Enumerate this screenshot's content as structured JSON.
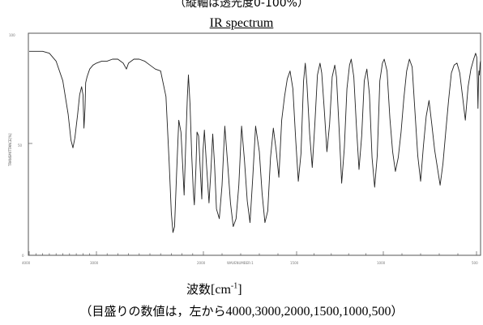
{
  "header": {
    "note_top": "（縦軸は透光度0-100%）",
    "title": "IR spectrum"
  },
  "axes": {
    "x_tick_labels": [
      "4000",
      "3000",
      "2000",
      "1500",
      "1000",
      "500"
    ],
    "y_tick_labels": [
      "100",
      "50",
      "0"
    ],
    "y_axis_label": "TRANSMITTANCE[%]",
    "x_axis_label": "WAVENUMBER-1"
  },
  "caption": {
    "xlabel_text": "波数",
    "xlabel_unit_base": "[cm",
    "xlabel_unit_exp": "-1",
    "xlabel_unit_close": "]",
    "note_open": "（目盛りの数値は，左から",
    "note_values": "4000,3000,2000,1500,1000,500",
    "note_close": "）"
  },
  "chart_data": {
    "type": "line",
    "title": "IR spectrum",
    "xlabel": "波数[cm-1]",
    "ylabel": "TRANSMITTANCE[%]",
    "xlim": [
      4000,
      400
    ],
    "ylim": [
      0,
      100
    ],
    "x_ticks": [
      4000,
      3000,
      2000,
      1500,
      1000,
      500
    ],
    "x_tick_labels": [
      "4000",
      "3000",
      "2000",
      "1500",
      "1000",
      "500"
    ],
    "y_ticks": [
      100,
      50,
      0
    ],
    "y_tick_labels": [
      "100",
      "50",
      "0"
    ],
    "grid": false,
    "series": [
      {
        "color": "#222222",
        "points": [
          [
            4000,
            97
          ],
          [
            3900,
            97
          ],
          [
            3800,
            97
          ],
          [
            3700,
            96
          ],
          [
            3600,
            92
          ],
          [
            3500,
            82
          ],
          [
            3420,
            65
          ],
          [
            3380,
            52
          ],
          [
            3350,
            48
          ],
          [
            3320,
            53
          ],
          [
            3280,
            65
          ],
          [
            3250,
            75
          ],
          [
            3220,
            79
          ],
          [
            3200,
            75
          ],
          [
            3185,
            58
          ],
          [
            3170,
            68
          ],
          [
            3160,
            81
          ],
          [
            3140,
            84
          ],
          [
            3100,
            88
          ],
          [
            3050,
            90
          ],
          [
            3000,
            91
          ],
          [
            2950,
            92
          ],
          [
            2900,
            92
          ],
          [
            2850,
            93
          ],
          [
            2800,
            93
          ],
          [
            2750,
            91
          ],
          [
            2720,
            88
          ],
          [
            2700,
            91
          ],
          [
            2650,
            93
          ],
          [
            2600,
            93
          ],
          [
            2550,
            92
          ],
          [
            2500,
            90
          ],
          [
            2450,
            88
          ],
          [
            2400,
            87
          ],
          [
            2350,
            74
          ],
          [
            2320,
            40
          ],
          [
            2300,
            15
          ],
          [
            2285,
            5
          ],
          [
            2270,
            8
          ],
          [
            2250,
            36
          ],
          [
            2230,
            62
          ],
          [
            2210,
            56
          ],
          [
            2195,
            40
          ],
          [
            2180,
            24
          ],
          [
            2165,
            50
          ],
          [
            2150,
            74
          ],
          [
            2140,
            85
          ],
          [
            2125,
            70
          ],
          [
            2110,
            45
          ],
          [
            2095,
            26
          ],
          [
            2085,
            19
          ],
          [
            2070,
            38
          ],
          [
            2060,
            56
          ],
          [
            2045,
            54
          ],
          [
            2030,
            38
          ],
          [
            2015,
            22
          ],
          [
            2005,
            45
          ],
          [
            1995,
            57
          ],
          [
            1985,
            42
          ],
          [
            1970,
            20
          ],
          [
            1960,
            36
          ],
          [
            1950,
            55
          ],
          [
            1940,
            39
          ],
          [
            1930,
            17
          ],
          [
            1915,
            12
          ],
          [
            1900,
            29
          ],
          [
            1885,
            59
          ],
          [
            1870,
            40
          ],
          [
            1855,
            20
          ],
          [
            1840,
            8
          ],
          [
            1825,
            12
          ],
          [
            1810,
            29
          ],
          [
            1795,
            59
          ],
          [
            1780,
            42
          ],
          [
            1765,
            21
          ],
          [
            1750,
            10
          ],
          [
            1735,
            33
          ],
          [
            1720,
            59
          ],
          [
            1700,
            46
          ],
          [
            1685,
            25
          ],
          [
            1670,
            10
          ],
          [
            1655,
            16
          ],
          [
            1640,
            43
          ],
          [
            1625,
            58
          ],
          [
            1610,
            47
          ],
          [
            1595,
            33
          ],
          [
            1580,
            62
          ],
          [
            1565,
            74
          ],
          [
            1550,
            83
          ],
          [
            1535,
            87
          ],
          [
            1520,
            78
          ],
          [
            1505,
            52
          ],
          [
            1490,
            31
          ],
          [
            1475,
            45
          ],
          [
            1460,
            82
          ],
          [
            1450,
            91
          ],
          [
            1440,
            80
          ],
          [
            1425,
            55
          ],
          [
            1410,
            38
          ],
          [
            1395,
            60
          ],
          [
            1380,
            85
          ],
          [
            1365,
            91
          ],
          [
            1355,
            86
          ],
          [
            1340,
            67
          ],
          [
            1325,
            46
          ],
          [
            1310,
            60
          ],
          [
            1295,
            84
          ],
          [
            1280,
            90
          ],
          [
            1270,
            84
          ],
          [
            1255,
            58
          ],
          [
            1240,
            30
          ],
          [
            1225,
            48
          ],
          [
            1210,
            78
          ],
          [
            1195,
            90
          ],
          [
            1185,
            93
          ],
          [
            1170,
            84
          ],
          [
            1155,
            59
          ],
          [
            1140,
            37
          ],
          [
            1125,
            54
          ],
          [
            1110,
            82
          ],
          [
            1095,
            88
          ],
          [
            1080,
            75
          ],
          [
            1065,
            43
          ],
          [
            1050,
            28
          ],
          [
            1035,
            44
          ],
          [
            1020,
            82
          ],
          [
            1005,
            91
          ],
          [
            995,
            93
          ],
          [
            980,
            87
          ],
          [
            965,
            63
          ],
          [
            950,
            46
          ],
          [
            935,
            36
          ],
          [
            920,
            43
          ],
          [
            905,
            56
          ],
          [
            890,
            73
          ],
          [
            875,
            87
          ],
          [
            860,
            93
          ],
          [
            845,
            89
          ],
          [
            830,
            66
          ],
          [
            815,
            44
          ],
          [
            800,
            31
          ],
          [
            785,
            49
          ],
          [
            770,
            64
          ],
          [
            755,
            72
          ],
          [
            740,
            60
          ],
          [
            725,
            47
          ],
          [
            710,
            38
          ],
          [
            695,
            29
          ],
          [
            680,
            40
          ],
          [
            665,
            56
          ],
          [
            650,
            72
          ],
          [
            635,
            86
          ],
          [
            620,
            90
          ],
          [
            605,
            91
          ],
          [
            590,
            86
          ],
          [
            575,
            74
          ],
          [
            560,
            62
          ],
          [
            545,
            79
          ],
          [
            530,
            88
          ],
          [
            515,
            93
          ],
          [
            505,
            96
          ],
          [
            495,
            94
          ],
          [
            480,
            84
          ],
          [
            465,
            68
          ],
          [
            450,
            83
          ],
          [
            440,
            87
          ],
          [
            430,
            85
          ],
          [
            420,
            88
          ],
          [
            410,
            91
          ],
          [
            400,
            92
          ]
        ]
      }
    ]
  }
}
